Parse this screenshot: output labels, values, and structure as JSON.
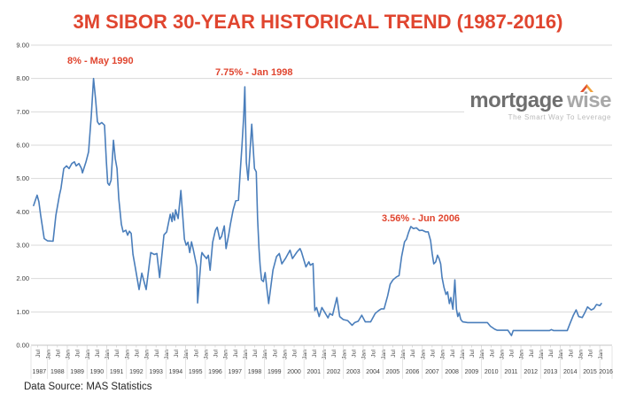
{
  "title": "3M SIBOR 30-YEAR HISTORICAL TREND (1987-2016)",
  "source_note": "Data Source: MAS Statistics",
  "logo": {
    "word1": "mortgage",
    "w": "w",
    "i": "i",
    "se": "se",
    "tagline": "The Smart Way To Leverage",
    "word1_color": "#6f6f6f",
    "word2_color": "#a8a8a8",
    "tagline_color": "#b9b9b9",
    "roof_left_color": "#e2512e",
    "roof_right_color": "#f0a13c"
  },
  "colors": {
    "title_red": "#e0452f",
    "line_blue": "#4a7ebb",
    "grid": "#d9d9d9",
    "axis_line": "#c6c6c6",
    "axis_text": "#404040"
  },
  "annotations": [
    {
      "text": "8% - May 1990"
    },
    {
      "text": "7.75% - Jan 1998"
    },
    {
      "text": "3.56% - Jun 2006"
    }
  ],
  "chart_data": {
    "type": "line",
    "title": "3M SIBOR 30-YEAR HISTORICAL TREND (1987-2016)",
    "ylabel": "",
    "xlabel": "",
    "ylim": [
      0,
      9
    ],
    "grid": "horizontal",
    "legend": "none",
    "y_tick_labels": [
      "9.00",
      "8.00",
      "7.00",
      "6.00",
      "5.00",
      "4.00",
      "3.00",
      "2.00",
      "1.00",
      "0.00"
    ],
    "x_month_tick_labels": [
      "Jul",
      "Jan",
      "Jul",
      "Jan",
      "Jul",
      "Jan",
      "Jul",
      "Jan",
      "Jul",
      "Jan",
      "Jul",
      "Jan",
      "Jul",
      "Jan",
      "Jul",
      "Jan",
      "Jul",
      "Jan",
      "Jul",
      "Jan",
      "Jul",
      "Jan",
      "Jul",
      "Jan",
      "Jul",
      "Jan",
      "Jul",
      "Jan",
      "Jul",
      "Jan",
      "Jul",
      "Jan",
      "Jul",
      "Jan",
      "Jul",
      "Jan",
      "Jul",
      "Jan",
      "Jul",
      "Jan",
      "Jul",
      "Jan",
      "Jul",
      "Jan",
      "Jul",
      "Jan",
      "Jul",
      "Jan",
      "Jul",
      "Jan",
      "Jul",
      "Jan",
      "Jul",
      "Jan",
      "Jul",
      "Jan",
      "Jul",
      "Jan"
    ],
    "x_year_labels": [
      "1987",
      "1988",
      "1989",
      "1990",
      "1991",
      "1992",
      "1993",
      "1994",
      "1995",
      "1996",
      "1997",
      "1998",
      "1999",
      "2000",
      "2001",
      "2002",
      "2003",
      "2004",
      "2005",
      "2006",
      "2007",
      "2008",
      "2009",
      "2010",
      "2011",
      "2012",
      "2013",
      "2014",
      "2015",
      "2016"
    ],
    "peak_annotations": [
      {
        "label": "8% - May 1990",
        "value": 8.0,
        "date": "May 1990"
      },
      {
        "label": "7.75% - Jan 1998",
        "value": 7.75,
        "date": "Jan 1998"
      },
      {
        "label": "3.56% - Jun 2006",
        "value": 3.56,
        "date": "Jun 2006"
      }
    ],
    "series": [
      {
        "name": "3M SIBOR (%)",
        "points": [
          [
            1987.29,
            4.19
          ],
          [
            1987.38,
            4.35
          ],
          [
            1987.47,
            4.5
          ],
          [
            1987.56,
            4.3
          ],
          [
            1987.65,
            3.9
          ],
          [
            1987.83,
            3.2
          ],
          [
            1988.0,
            3.13
          ],
          [
            1988.28,
            3.12
          ],
          [
            1988.42,
            3.9
          ],
          [
            1988.6,
            4.5
          ],
          [
            1988.68,
            4.7
          ],
          [
            1988.82,
            5.3
          ],
          [
            1988.96,
            5.38
          ],
          [
            1989.09,
            5.3
          ],
          [
            1989.23,
            5.45
          ],
          [
            1989.36,
            5.5
          ],
          [
            1989.45,
            5.38
          ],
          [
            1989.59,
            5.45
          ],
          [
            1989.72,
            5.3
          ],
          [
            1989.77,
            5.17
          ],
          [
            1989.95,
            5.5
          ],
          [
            1990.08,
            5.8
          ],
          [
            1990.22,
            6.9
          ],
          [
            1990.33,
            8.0
          ],
          [
            1990.44,
            7.35
          ],
          [
            1990.53,
            6.7
          ],
          [
            1990.62,
            6.62
          ],
          [
            1990.75,
            6.68
          ],
          [
            1990.89,
            6.6
          ],
          [
            1990.98,
            5.5
          ],
          [
            1991.05,
            4.86
          ],
          [
            1991.13,
            4.8
          ],
          [
            1991.22,
            4.95
          ],
          [
            1991.34,
            6.15
          ],
          [
            1991.43,
            5.6
          ],
          [
            1991.52,
            5.3
          ],
          [
            1991.61,
            4.4
          ],
          [
            1991.74,
            3.63
          ],
          [
            1991.83,
            3.4
          ],
          [
            1991.97,
            3.45
          ],
          [
            1992.06,
            3.3
          ],
          [
            1992.15,
            3.42
          ],
          [
            1992.24,
            3.35
          ],
          [
            1992.33,
            2.73
          ],
          [
            1992.46,
            2.29
          ],
          [
            1992.64,
            1.67
          ],
          [
            1992.78,
            2.16
          ],
          [
            1993.0,
            1.67
          ],
          [
            1993.23,
            2.78
          ],
          [
            1993.41,
            2.72
          ],
          [
            1993.54,
            2.75
          ],
          [
            1993.68,
            2.03
          ],
          [
            1993.9,
            3.31
          ],
          [
            1994.04,
            3.4
          ],
          [
            1994.22,
            3.93
          ],
          [
            1994.31,
            3.71
          ],
          [
            1994.35,
            3.97
          ],
          [
            1994.44,
            3.75
          ],
          [
            1994.49,
            4.06
          ],
          [
            1994.62,
            3.8
          ],
          [
            1994.76,
            4.64
          ],
          [
            1994.94,
            3.18
          ],
          [
            1995.03,
            3.0
          ],
          [
            1995.12,
            3.09
          ],
          [
            1995.21,
            2.78
          ],
          [
            1995.3,
            3.1
          ],
          [
            1995.39,
            2.87
          ],
          [
            1995.48,
            2.6
          ],
          [
            1995.57,
            2.34
          ],
          [
            1995.61,
            1.27
          ],
          [
            1995.79,
            2.65
          ],
          [
            1995.83,
            2.78
          ],
          [
            1995.92,
            2.7
          ],
          [
            1996.06,
            2.6
          ],
          [
            1996.15,
            2.7
          ],
          [
            1996.24,
            2.25
          ],
          [
            1996.37,
            3.09
          ],
          [
            1996.51,
            3.45
          ],
          [
            1996.6,
            3.54
          ],
          [
            1996.73,
            3.18
          ],
          [
            1996.82,
            3.26
          ],
          [
            1996.96,
            3.58
          ],
          [
            1997.05,
            2.9
          ],
          [
            1997.18,
            3.3
          ],
          [
            1997.27,
            3.63
          ],
          [
            1997.41,
            4.06
          ],
          [
            1997.54,
            4.33
          ],
          [
            1997.68,
            4.35
          ],
          [
            1997.77,
            5.2
          ],
          [
            1997.86,
            6.0
          ],
          [
            1997.95,
            6.9
          ],
          [
            1998.0,
            7.75
          ],
          [
            1998.08,
            5.48
          ],
          [
            1998.17,
            4.95
          ],
          [
            1998.35,
            6.63
          ],
          [
            1998.49,
            5.3
          ],
          [
            1998.58,
            5.2
          ],
          [
            1998.65,
            3.8
          ],
          [
            1998.72,
            2.9
          ],
          [
            1998.78,
            2.38
          ],
          [
            1998.85,
            1.96
          ],
          [
            1998.94,
            1.91
          ],
          [
            1999.03,
            2.18
          ],
          [
            1999.12,
            1.7
          ],
          [
            1999.21,
            1.25
          ],
          [
            1999.43,
            2.26
          ],
          [
            1999.61,
            2.66
          ],
          [
            1999.75,
            2.75
          ],
          [
            1999.88,
            2.44
          ],
          [
            2000.06,
            2.6
          ],
          [
            2000.29,
            2.85
          ],
          [
            2000.42,
            2.6
          ],
          [
            2000.65,
            2.8
          ],
          [
            2000.8,
            2.9
          ],
          [
            2000.87,
            2.8
          ],
          [
            2001.1,
            2.35
          ],
          [
            2001.25,
            2.5
          ],
          [
            2001.32,
            2.4
          ],
          [
            2001.46,
            2.45
          ],
          [
            2001.55,
            1.04
          ],
          [
            2001.64,
            1.13
          ],
          [
            2001.77,
            0.86
          ],
          [
            2001.91,
            1.13
          ],
          [
            2002.09,
            0.95
          ],
          [
            2002.22,
            0.82
          ],
          [
            2002.31,
            0.95
          ],
          [
            2002.45,
            0.9
          ],
          [
            2002.67,
            1.43
          ],
          [
            2002.81,
            0.86
          ],
          [
            2002.99,
            0.77
          ],
          [
            2003.21,
            0.74
          ],
          [
            2003.44,
            0.6
          ],
          [
            2003.57,
            0.68
          ],
          [
            2003.75,
            0.72
          ],
          [
            2003.93,
            0.9
          ],
          [
            2004.11,
            0.7
          ],
          [
            2004.38,
            0.7
          ],
          [
            2004.61,
            0.95
          ],
          [
            2004.79,
            1.04
          ],
          [
            2004.92,
            1.09
          ],
          [
            2005.06,
            1.09
          ],
          [
            2005.24,
            1.48
          ],
          [
            2005.37,
            1.83
          ],
          [
            2005.51,
            1.96
          ],
          [
            2005.69,
            2.05
          ],
          [
            2005.82,
            2.09
          ],
          [
            2005.95,
            2.66
          ],
          [
            2006.1,
            3.1
          ],
          [
            2006.2,
            3.18
          ],
          [
            2006.3,
            3.38
          ],
          [
            2006.42,
            3.56
          ],
          [
            2006.55,
            3.5
          ],
          [
            2006.7,
            3.52
          ],
          [
            2006.85,
            3.44
          ],
          [
            2007.0,
            3.45
          ],
          [
            2007.17,
            3.4
          ],
          [
            2007.3,
            3.4
          ],
          [
            2007.42,
            3.14
          ],
          [
            2007.5,
            2.75
          ],
          [
            2007.58,
            2.44
          ],
          [
            2007.68,
            2.5
          ],
          [
            2007.77,
            2.7
          ],
          [
            2007.85,
            2.6
          ],
          [
            2007.93,
            2.44
          ],
          [
            2008.0,
            2.04
          ],
          [
            2008.1,
            1.74
          ],
          [
            2008.2,
            1.52
          ],
          [
            2008.28,
            1.6
          ],
          [
            2008.37,
            1.25
          ],
          [
            2008.45,
            1.43
          ],
          [
            2008.55,
            1.08
          ],
          [
            2008.65,
            1.96
          ],
          [
            2008.73,
            1.08
          ],
          [
            2008.8,
            0.86
          ],
          [
            2008.87,
            0.97
          ],
          [
            2008.95,
            0.77
          ],
          [
            2009.05,
            0.7
          ],
          [
            2009.3,
            0.68
          ],
          [
            2010.3,
            0.68
          ],
          [
            2010.45,
            0.57
          ],
          [
            2010.67,
            0.48
          ],
          [
            2010.8,
            0.45
          ],
          [
            2011.34,
            0.45
          ],
          [
            2011.52,
            0.29
          ],
          [
            2011.61,
            0.44
          ],
          [
            2012.5,
            0.44
          ],
          [
            2013.45,
            0.44
          ],
          [
            2013.54,
            0.47
          ],
          [
            2013.65,
            0.44
          ],
          [
            2014.35,
            0.44
          ],
          [
            2014.48,
            0.64
          ],
          [
            2014.66,
            0.9
          ],
          [
            2014.8,
            1.06
          ],
          [
            2014.93,
            0.86
          ],
          [
            2015.11,
            0.83
          ],
          [
            2015.25,
            0.99
          ],
          [
            2015.38,
            1.15
          ],
          [
            2015.56,
            1.06
          ],
          [
            2015.7,
            1.1
          ],
          [
            2015.83,
            1.22
          ],
          [
            2016.0,
            1.19
          ],
          [
            2016.08,
            1.25
          ]
        ]
      }
    ]
  }
}
